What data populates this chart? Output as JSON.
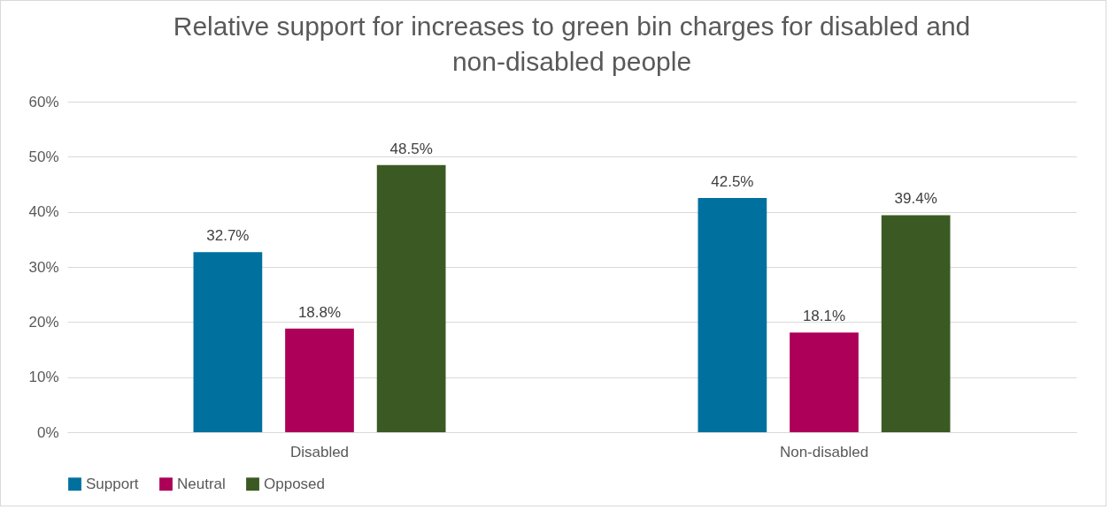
{
  "chart_data": {
    "type": "bar",
    "title": "Relative support for increases to green bin charges for disabled and non-disabled people",
    "categories": [
      "Disabled",
      "Non-disabled"
    ],
    "series": [
      {
        "name": "Support",
        "color": "#00709f",
        "values": [
          32.7,
          42.5
        ],
        "value_labels": [
          "32.7%",
          "42.5%"
        ]
      },
      {
        "name": "Neutral",
        "color": "#ad0058",
        "values": [
          18.8,
          18.1
        ],
        "value_labels": [
          "18.8%",
          "18.1%"
        ]
      },
      {
        "name": "Opposed",
        "color": "#3b5a23",
        "values": [
          48.5,
          39.4
        ],
        "value_labels": [
          "48.5%",
          "39.4%"
        ]
      }
    ],
    "ylim": [
      0,
      60
    ],
    "yticks": [
      {
        "value": 0,
        "label": "0%"
      },
      {
        "value": 10,
        "label": "10%"
      },
      {
        "value": 20,
        "label": "20%"
      },
      {
        "value": 30,
        "label": "30%"
      },
      {
        "value": 40,
        "label": "40%"
      },
      {
        "value": 50,
        "label": "50%"
      },
      {
        "value": 60,
        "label": "60%"
      }
    ],
    "grid": "y",
    "legend": "bottom"
  }
}
